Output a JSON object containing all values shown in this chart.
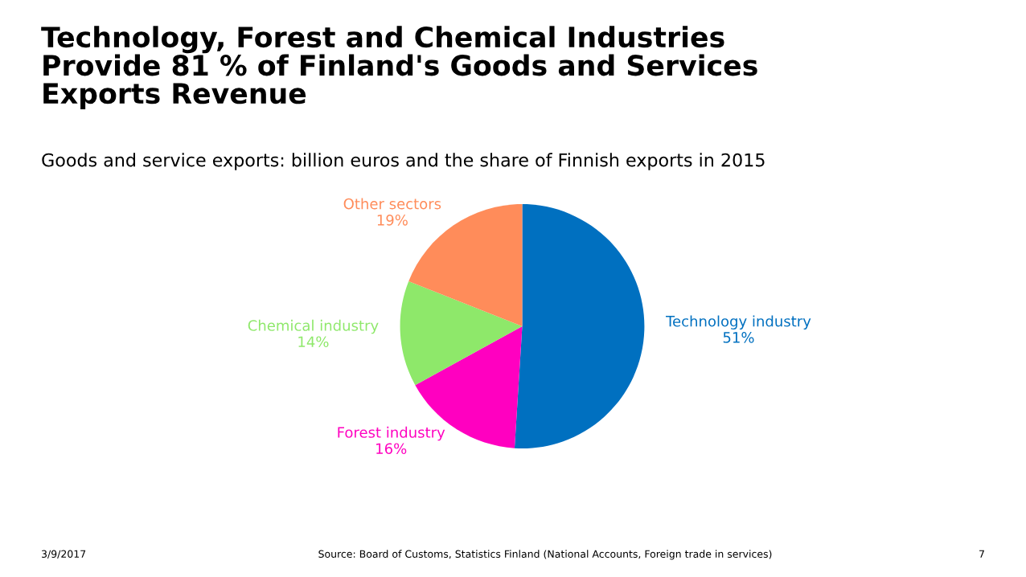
{
  "chart_data": {
    "type": "pie",
    "title": "Technology, Forest and Chemical Industries\nProvide 81 % of Finland's Goods and Services\nExports Revenue",
    "subtitle": "Goods and service exports: billion euros and the share of Finnish exports in 2015",
    "categories": [
      "Technology industry",
      "Forest industry",
      "Chemical industry",
      "Other sectors"
    ],
    "values": [
      51,
      16,
      14,
      19
    ],
    "value_labels": [
      "51%",
      "16%",
      "14%",
      "19%"
    ],
    "colors": [
      "#0070c0",
      "#ff00c0",
      "#8ee86a",
      "#ff8c5a"
    ],
    "annotations": [
      "3/9/2017",
      "Source: Board of Customs, Statistics Finland (National Accounts, Foreign trade in services)",
      "7"
    ],
    "legend": false
  }
}
